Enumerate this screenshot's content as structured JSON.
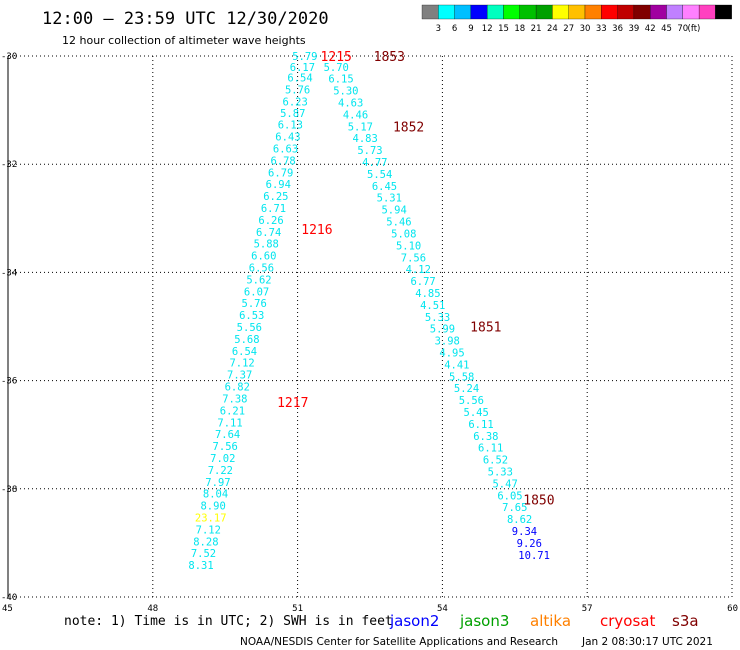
{
  "title": "12:00 – 23:59 UTC 12/30/2020",
  "subtitle": "12 hour collection of altimeter wave heights",
  "note": "note:  1) Time is in UTC; 2) SWH is in feet",
  "credit": "NOAA/NESDIS Center for Satellite Applications and Research",
  "timestamp": "Jan  2 08:30:17 UTC 2021",
  "legend": {
    "colors": [
      "#808080",
      "#00ffff",
      "#00bfff",
      "#0000ff",
      "#00ffbf",
      "#00ff00",
      "#00c000",
      "#00a000",
      "#ffff00",
      "#ffc000",
      "#ff8000",
      "#ff0000",
      "#c00000",
      "#800000",
      "#a000a0",
      "#c080ff",
      "#ff80ff",
      "#ff40c0",
      "#000000"
    ],
    "labels": [
      "3",
      "6",
      "9",
      "12",
      "15",
      "18",
      "21",
      "24",
      "27",
      "30",
      "33",
      "36",
      "39",
      "42",
      "45",
      "70",
      "(ft)"
    ]
  },
  "satellites": [
    {
      "name": "jason2",
      "color": "#0000ff"
    },
    {
      "name": "jason3",
      "color": "#00a000"
    },
    {
      "name": "altika",
      "color": "#ff8000"
    },
    {
      "name": "cryosat",
      "color": "#ff0000"
    },
    {
      "name": "s3a",
      "color": "#800000"
    }
  ],
  "chart_data": {
    "type": "scatter",
    "title": "12:00 – 23:59 UTC 12/30/2020",
    "subtitle": "12 hour collection of altimeter wave heights",
    "xlim": [
      45,
      60
    ],
    "ylim": [
      -40,
      -30
    ],
    "x_ticks": [
      "45",
      "48",
      "51",
      "54",
      "57",
      "60"
    ],
    "y_ticks": [
      "-30",
      "-32",
      "-34",
      "-36",
      "-38",
      "-40"
    ],
    "grid": true,
    "cryosat_track": {
      "color": "#00e5ee",
      "points": [
        {
          "x": 51.15,
          "y": -30.0,
          "v": "5.79"
        },
        {
          "x": 51.1,
          "y": -30.2,
          "v": "6.17"
        },
        {
          "x": 51.05,
          "y": -30.4,
          "v": "6.54"
        },
        {
          "x": 51.0,
          "y": -30.62,
          "v": "5.76"
        },
        {
          "x": 50.95,
          "y": -30.84,
          "v": "6.23"
        },
        {
          "x": 50.9,
          "y": -31.05,
          "v": "5.87"
        },
        {
          "x": 50.85,
          "y": -31.27,
          "v": "6.13"
        },
        {
          "x": 50.8,
          "y": -31.49,
          "v": "6.43"
        },
        {
          "x": 50.75,
          "y": -31.71,
          "v": "6.63"
        },
        {
          "x": 50.7,
          "y": -31.93,
          "v": "6.78"
        },
        {
          "x": 50.65,
          "y": -32.15,
          "v": "6.79"
        },
        {
          "x": 50.6,
          "y": -32.37,
          "v": "6.94"
        },
        {
          "x": 50.55,
          "y": -32.59,
          "v": "6.25"
        },
        {
          "x": 50.5,
          "y": -32.81,
          "v": "6.71"
        },
        {
          "x": 50.45,
          "y": -33.03,
          "v": "6.26"
        },
        {
          "x": 50.4,
          "y": -33.25,
          "v": "6.74"
        },
        {
          "x": 50.35,
          "y": -33.47,
          "v": "5.88"
        },
        {
          "x": 50.3,
          "y": -33.69,
          "v": "6.60"
        },
        {
          "x": 50.25,
          "y": -33.91,
          "v": "6.56"
        },
        {
          "x": 50.2,
          "y": -34.13,
          "v": "5.62"
        },
        {
          "x": 50.15,
          "y": -34.35,
          "v": "6.07"
        },
        {
          "x": 50.1,
          "y": -34.57,
          "v": "5.76"
        },
        {
          "x": 50.05,
          "y": -34.79,
          "v": "6.53"
        },
        {
          "x": 50.0,
          "y": -35.01,
          "v": "5.56"
        },
        {
          "x": 49.95,
          "y": -35.23,
          "v": "5.68"
        },
        {
          "x": 49.9,
          "y": -35.45,
          "v": "6.54"
        },
        {
          "x": 49.85,
          "y": -35.67,
          "v": "7.12"
        },
        {
          "x": 49.8,
          "y": -35.89,
          "v": "7.37"
        },
        {
          "x": 49.75,
          "y": -36.11,
          "v": "6.82"
        },
        {
          "x": 49.7,
          "y": -36.33,
          "v": "7.38"
        },
        {
          "x": 49.65,
          "y": -36.55,
          "v": "6.21"
        },
        {
          "x": 49.6,
          "y": -36.77,
          "v": "7.11"
        },
        {
          "x": 49.55,
          "y": -36.99,
          "v": "7.64"
        },
        {
          "x": 49.5,
          "y": -37.21,
          "v": "7.56"
        },
        {
          "x": 49.45,
          "y": -37.43,
          "v": "7.02"
        },
        {
          "x": 49.4,
          "y": -37.65,
          "v": "7.22"
        },
        {
          "x": 49.35,
          "y": -37.87,
          "v": "7.97"
        },
        {
          "x": 49.3,
          "y": -38.09,
          "v": "8.04"
        },
        {
          "x": 49.25,
          "y": -38.31,
          "v": "8.90"
        },
        {
          "x": 49.2,
          "y": -38.53,
          "v": "23.17",
          "color": "#ffff00"
        },
        {
          "x": 49.15,
          "y": -38.75,
          "v": "7.12"
        },
        {
          "x": 49.1,
          "y": -38.97,
          "v": "8.28"
        },
        {
          "x": 49.05,
          "y": -39.19,
          "v": "7.52"
        },
        {
          "x": 49.0,
          "y": -39.41,
          "v": "8.31"
        }
      ],
      "pass_labels": [
        {
          "label": "1215",
          "x": 51.8,
          "y": -30.0
        },
        {
          "label": "1216",
          "x": 51.4,
          "y": -33.2
        },
        {
          "label": "1217",
          "x": 50.9,
          "y": -36.4
        }
      ]
    },
    "s3a_track": {
      "color": "#00e5ee",
      "points": [
        {
          "x": 51.8,
          "y": -30.2,
          "v": "5.70"
        },
        {
          "x": 51.9,
          "y": -30.42,
          "v": "6.15"
        },
        {
          "x": 52.0,
          "y": -30.64,
          "v": "5.30"
        },
        {
          "x": 52.1,
          "y": -30.86,
          "v": "4.63"
        },
        {
          "x": 52.2,
          "y": -31.08,
          "v": "4.46"
        },
        {
          "x": 52.3,
          "y": -31.3,
          "v": "5.17"
        },
        {
          "x": 52.4,
          "y": -31.52,
          "v": "4.83"
        },
        {
          "x": 52.5,
          "y": -31.74,
          "v": "5.73"
        },
        {
          "x": 52.6,
          "y": -31.96,
          "v": "4.77"
        },
        {
          "x": 52.7,
          "y": -32.18,
          "v": "5.54"
        },
        {
          "x": 52.8,
          "y": -32.4,
          "v": "6.45"
        },
        {
          "x": 52.9,
          "y": -32.62,
          "v": "5.31"
        },
        {
          "x": 53.0,
          "y": -32.84,
          "v": "5.94"
        },
        {
          "x": 53.1,
          "y": -33.06,
          "v": "5.46"
        },
        {
          "x": 53.2,
          "y": -33.28,
          "v": "5.08"
        },
        {
          "x": 53.3,
          "y": -33.5,
          "v": "5.10"
        },
        {
          "x": 53.4,
          "y": -33.72,
          "v": "7.56"
        },
        {
          "x": 53.5,
          "y": -33.94,
          "v": "4.12"
        },
        {
          "x": 53.6,
          "y": -34.16,
          "v": "6.77"
        },
        {
          "x": 53.7,
          "y": -34.38,
          "v": "4.85"
        },
        {
          "x": 53.8,
          "y": -34.6,
          "v": "4.51"
        },
        {
          "x": 53.9,
          "y": -34.82,
          "v": "5.33"
        },
        {
          "x": 54.0,
          "y": -35.04,
          "v": "5.99"
        },
        {
          "x": 54.1,
          "y": -35.26,
          "v": "3.98"
        },
        {
          "x": 54.2,
          "y": -35.48,
          "v": "4.95"
        },
        {
          "x": 54.3,
          "y": -35.7,
          "v": "4.41"
        },
        {
          "x": 54.4,
          "y": -35.92,
          "v": "5.58"
        },
        {
          "x": 54.5,
          "y": -36.14,
          "v": "5.24"
        },
        {
          "x": 54.6,
          "y": -36.36,
          "v": "5.56"
        },
        {
          "x": 54.7,
          "y": -36.58,
          "v": "5.45"
        },
        {
          "x": 54.8,
          "y": -36.8,
          "v": "6.11"
        },
        {
          "x": 54.9,
          "y": -37.02,
          "v": "6.38"
        },
        {
          "x": 55.0,
          "y": -37.24,
          "v": "6.11"
        },
        {
          "x": 55.1,
          "y": -37.46,
          "v": "6.52"
        },
        {
          "x": 55.2,
          "y": -37.68,
          "v": "5.33"
        },
        {
          "x": 55.3,
          "y": -37.9,
          "v": "5.47"
        },
        {
          "x": 55.4,
          "y": -38.12,
          "v": "6.05"
        },
        {
          "x": 55.5,
          "y": -38.34,
          "v": "7.65"
        },
        {
          "x": 55.6,
          "y": -38.56,
          "v": "8.62"
        },
        {
          "x": 55.7,
          "y": -38.78,
          "v": "9.34",
          "color": "#0000ff"
        },
        {
          "x": 55.8,
          "y": -39.0,
          "v": "9.26",
          "color": "#0000ff"
        },
        {
          "x": 55.9,
          "y": -39.22,
          "v": "10.71",
          "color": "#0000ff"
        }
      ],
      "pass_labels": [
        {
          "label": "1853",
          "x": 52.9,
          "y": -30.0
        },
        {
          "label": "1852",
          "x": 53.3,
          "y": -31.3
        },
        {
          "label": "1851",
          "x": 54.9,
          "y": -35.0
        },
        {
          "label": "1850",
          "x": 56.0,
          "y": -38.2
        }
      ]
    }
  }
}
